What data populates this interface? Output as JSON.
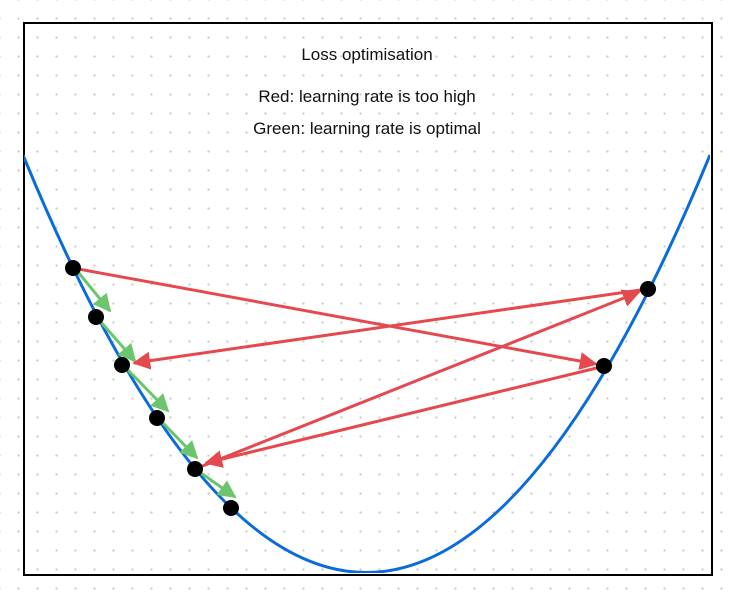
{
  "diagram": {
    "title": "Loss optimisation",
    "legend_red": "Red: learning rate is too high",
    "legend_green": "Green: learning rate is optimal"
  },
  "colors": {
    "curve": "#0a6bdc",
    "red_arrow": "#e5484d",
    "green_arrow": "#6cc46c",
    "point": "#000000",
    "frame": "#000000"
  }
}
